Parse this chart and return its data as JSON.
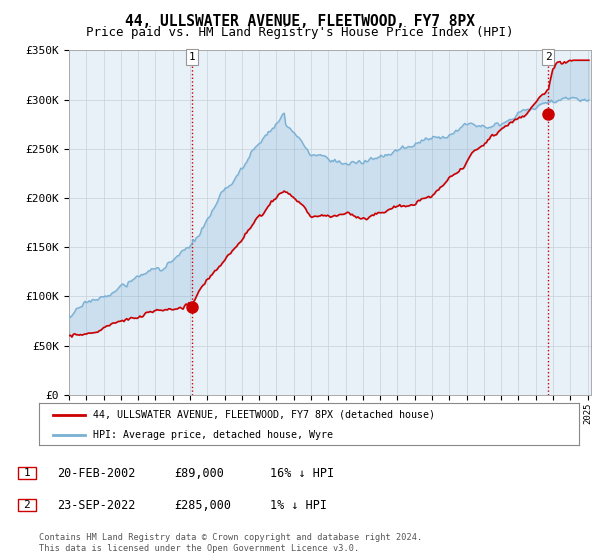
{
  "title": "44, ULLSWATER AVENUE, FLEETWOOD, FY7 8PX",
  "subtitle": "Price paid vs. HM Land Registry's House Price Index (HPI)",
  "xlim_start": 1995.0,
  "xlim_end": 2025.2,
  "ylim_min": 0,
  "ylim_max": 350000,
  "yticks": [
    0,
    50000,
    100000,
    150000,
    200000,
    250000,
    300000,
    350000
  ],
  "ytick_labels": [
    "£0",
    "£50K",
    "£100K",
    "£150K",
    "£200K",
    "£250K",
    "£300K",
    "£350K"
  ],
  "sale1_date_num": 2002.13,
  "sale1_price": 89000,
  "sale1_label": "1",
  "sale2_date_num": 2022.72,
  "sale2_price": 285000,
  "sale2_label": "2",
  "red_line_color": "#cc0000",
  "blue_line_color": "#7ab0d4",
  "fill_color": "#ddeeff",
  "vline_color": "#cc0000",
  "plot_bg_color": "#e8f0f8",
  "background_color": "#ffffff",
  "grid_color": "#c8d0d8",
  "legend_label_red": "44, ULLSWATER AVENUE, FLEETWOOD, FY7 8PX (detached house)",
  "legend_label_blue": "HPI: Average price, detached house, Wyre",
  "table_row1": [
    "1",
    "20-FEB-2002",
    "£89,000",
    "16% ↓ HPI"
  ],
  "table_row2": [
    "2",
    "23-SEP-2022",
    "£285,000",
    "1% ↓ HPI"
  ],
  "footer": "Contains HM Land Registry data © Crown copyright and database right 2024.\nThis data is licensed under the Open Government Licence v3.0.",
  "title_fontsize": 10.5,
  "subtitle_fontsize": 9,
  "tick_fontsize": 8
}
